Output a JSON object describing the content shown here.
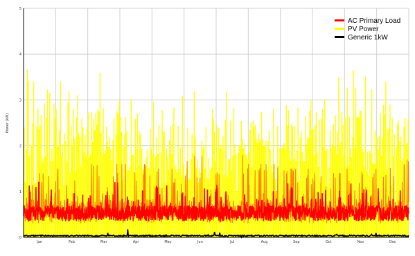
{
  "chart_data": {
    "type": "line",
    "title": "",
    "xlabel": "",
    "ylabel": "Power (kW)",
    "x_categories": [
      "Jan",
      "Feb",
      "Mar",
      "Apr",
      "May",
      "Jun",
      "Jul",
      "Aug",
      "Sep",
      "Oct",
      "Nov",
      "Dec"
    ],
    "ylim": [
      0,
      5
    ],
    "yticks": [
      0,
      1,
      2,
      3,
      4,
      5
    ],
    "grid": true,
    "legend_position": "top-right",
    "series": [
      {
        "name": "PV Power",
        "color": "#ffff00",
        "monthly_peak_kw": [
          3.9,
          3.8,
          3.8,
          3.6,
          3.4,
          3.3,
          3.5,
          3.5,
          3.8,
          3.9,
          4.1,
          3.9
        ],
        "monthly_mean_peak_kw": [
          2.6,
          2.8,
          2.8,
          2.7,
          2.5,
          2.4,
          2.5,
          2.6,
          2.8,
          2.7,
          2.8,
          2.6
        ]
      },
      {
        "name": "AC Primary Load",
        "color": "#ff0000",
        "monthly_peak_kw": [
          1.4,
          1.5,
          1.6,
          1.6,
          1.5,
          1.8,
          1.8,
          1.6,
          1.5,
          1.4,
          1.5,
          1.7
        ],
        "typical_band_kw": [
          0.3,
          0.7
        ]
      },
      {
        "name": "Generic 1kW",
        "color": "#000000",
        "monthly_peak_kw": [
          0.2,
          0.15,
          0.1,
          0.2,
          0.1,
          0.2,
          0.15,
          0.1,
          0.05,
          0.1,
          0.1,
          0.15
        ],
        "typical_kw": 0.02
      }
    ]
  }
}
